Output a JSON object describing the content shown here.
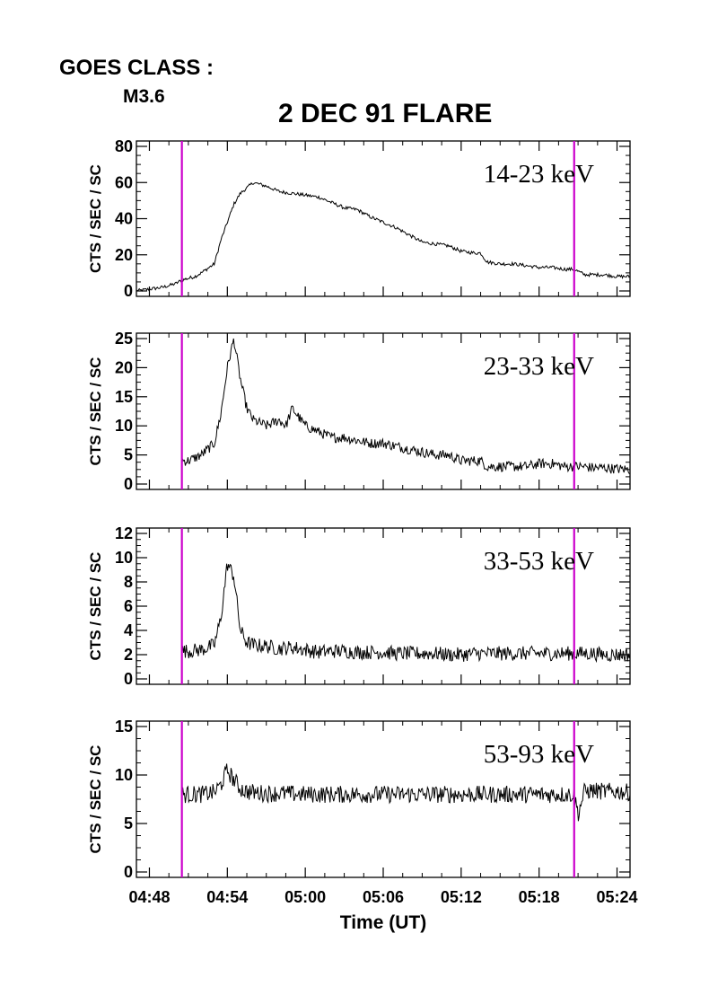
{
  "header": {
    "goes_label": "GOES CLASS :",
    "goes_value": "M3.6",
    "title": "2 DEC 91 FLARE"
  },
  "chart_data": {
    "type": "line",
    "title": "2 DEC 91 FLARE",
    "xlabel": "Time (UT)",
    "x_unit": "minutes after 04:48 UT",
    "xlim": [
      -1.0,
      37.0
    ],
    "x_tick_labels": [
      "04:48",
      "04:54",
      "05:00",
      "05:06",
      "05:12",
      "05:18",
      "05:24"
    ],
    "x_tick_values": [
      0,
      6,
      12,
      18,
      24,
      30,
      36
    ],
    "vertical_markers": [
      2.5,
      32.7
    ],
    "marker_color": "#cc00cc",
    "line_color": "#000000",
    "panels": [
      {
        "label": "14-23 keV",
        "ylabel": "CTS / SEC / SC",
        "ylim": [
          0,
          80
        ],
        "yticks": [
          0,
          20,
          40,
          60,
          80
        ],
        "x": [
          -1.0,
          0.0,
          1.0,
          2.0,
          2.5,
          3.5,
          4.0,
          5.0,
          5.5,
          6.0,
          6.5,
          7.0,
          8.0,
          9.0,
          10.0,
          11.0,
          12.0,
          13.0,
          14.0,
          15.0,
          16.0,
          17.0,
          18.0,
          19.0,
          20.0,
          21.0,
          22.0,
          23.0,
          24.0,
          25.0,
          25.5,
          26.0,
          27.0,
          28.0,
          29.0,
          30.0,
          31.0,
          32.0,
          32.7,
          33.5,
          34.0,
          35.0,
          36.0,
          37.0
        ],
        "y": [
          0,
          1,
          2,
          4,
          6,
          8,
          10,
          15,
          28,
          38,
          48,
          54,
          60,
          58,
          55,
          54,
          53,
          52,
          49,
          46,
          45,
          41,
          38,
          35,
          31,
          27,
          26,
          25,
          22,
          21,
          21,
          16,
          15,
          15,
          14,
          13,
          13,
          12,
          12,
          9,
          9,
          9,
          8,
          8
        ]
      },
      {
        "label": "23-33 keV",
        "ylabel": "CTS / SEC / SC",
        "ylim": [
          0,
          25
        ],
        "yticks": [
          0,
          5,
          10,
          15,
          20,
          25
        ],
        "x": [
          2.5,
          3.0,
          4.0,
          5.0,
          5.5,
          6.0,
          6.5,
          7.0,
          7.5,
          8.0,
          9.0,
          10.0,
          10.5,
          11.0,
          12.0,
          13.0,
          14.0,
          15.0,
          16.0,
          17.0,
          18.0,
          19.0,
          20.0,
          21.0,
          22.0,
          23.0,
          24.0,
          25.0,
          25.5,
          26.0,
          27.0,
          28.0,
          29.0,
          30.0,
          31.0,
          32.0,
          32.7,
          33.5,
          34.0,
          35.0,
          36.0,
          37.0
        ],
        "y": [
          4,
          4,
          5,
          7,
          12,
          20,
          25,
          18,
          13,
          11,
          10,
          11,
          10,
          13,
          10,
          9,
          8,
          8,
          7.5,
          7,
          7,
          6.5,
          6,
          5.5,
          5,
          5,
          4,
          4,
          4,
          3,
          3,
          3,
          3,
          3.5,
          3.5,
          3,
          3,
          3,
          2.8,
          2.8,
          2.6,
          2.5
        ]
      },
      {
        "label": "33-53 keV",
        "ylabel": "CTS / SEC / SC",
        "ylim": [
          0,
          12
        ],
        "yticks": [
          0,
          2,
          4,
          6,
          8,
          10,
          12
        ],
        "x": [
          2.5,
          3.0,
          4.0,
          5.0,
          5.5,
          6.0,
          6.5,
          7.0,
          7.5,
          8.0,
          9.0,
          10.0,
          11.0,
          12.0,
          13.0,
          14.0,
          15.0,
          16.0,
          17.0,
          18.0,
          19.0,
          20.0,
          21.0,
          22.0,
          23.0,
          24.0,
          25.0,
          25.5,
          26.0,
          27.0,
          28.0,
          29.0,
          30.0,
          31.0,
          32.0,
          32.7,
          33.5,
          34.0,
          35.0,
          36.0,
          37.0
        ],
        "y": [
          2.3,
          2.3,
          2.4,
          2.8,
          5,
          9.5,
          8.5,
          4,
          3,
          2.8,
          2.7,
          2.5,
          2.6,
          2.4,
          2.2,
          2.3,
          2.3,
          2.2,
          2.2,
          2.2,
          2.1,
          2.1,
          2.1,
          2.1,
          2.0,
          2.0,
          2.1,
          2.1,
          2.1,
          2.1,
          2.1,
          2.1,
          2.1,
          2.1,
          2.1,
          2.1,
          2.1,
          2.1,
          2.0,
          2.0,
          2.0
        ]
      },
      {
        "label": "53-93 keV",
        "ylabel": "CTS / SEC / SC",
        "ylim": [
          0,
          15
        ],
        "yticks": [
          0,
          5,
          10,
          15
        ],
        "x": [
          2.5,
          3.0,
          4.0,
          5.0,
          5.5,
          6.0,
          6.5,
          7.0,
          7.5,
          8.0,
          9.0,
          10.0,
          12.0,
          14.0,
          16.0,
          18.0,
          20.0,
          22.0,
          24.0,
          25.0,
          25.5,
          26.0,
          27.0,
          28.0,
          29.0,
          30.0,
          31.0,
          32.0,
          32.7,
          33.0,
          33.5,
          34.0,
          35.0,
          36.0,
          37.0
        ],
        "y": [
          8,
          8,
          8,
          8.2,
          9,
          10.5,
          9.5,
          8.6,
          8.3,
          8.2,
          8.1,
          8.1,
          8.0,
          8.0,
          8.0,
          8.0,
          8.0,
          8.0,
          8.0,
          8.0,
          8.0,
          8.0,
          8.0,
          8.0,
          8.0,
          8.0,
          8.0,
          8.0,
          8.0,
          6,
          8.3,
          8.4,
          8.3,
          8.3,
          8.2
        ]
      }
    ]
  }
}
